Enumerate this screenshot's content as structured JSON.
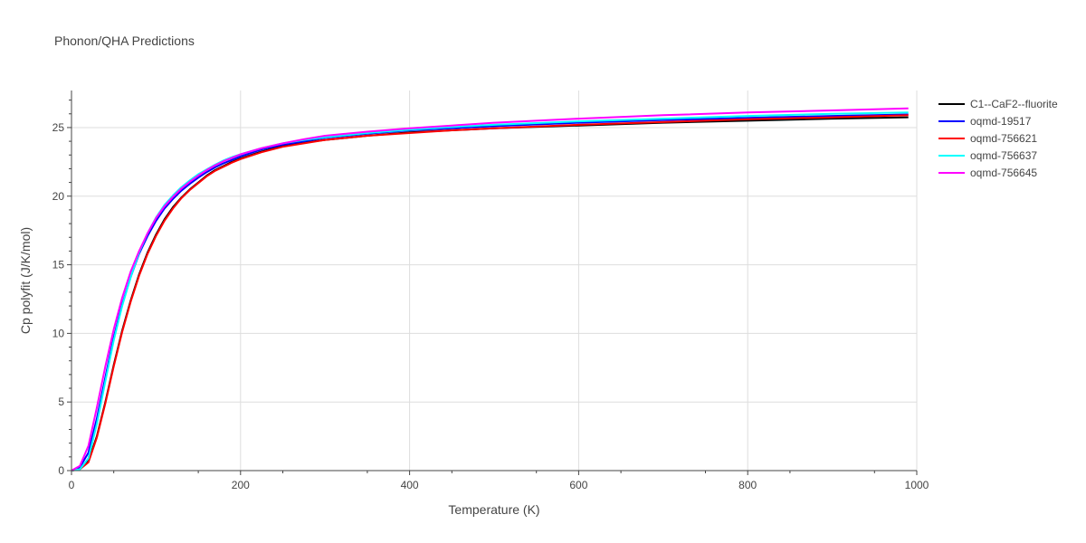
{
  "chart_data": {
    "type": "line",
    "title": "Phonon/QHA Predictions",
    "xlabel": "Temperature (K)",
    "ylabel": "Cp polyfit (J/K/mol)",
    "xlim": [
      0,
      1000
    ],
    "ylim": [
      0,
      27.7
    ],
    "xticks": [
      0,
      200,
      400,
      600,
      800,
      1000
    ],
    "yticks": [
      0,
      5,
      10,
      15,
      20,
      25
    ],
    "grid": true,
    "legend_position": "top-right",
    "x": [
      0,
      10,
      20,
      30,
      40,
      50,
      60,
      70,
      80,
      90,
      100,
      110,
      120,
      130,
      140,
      150,
      160,
      170,
      180,
      190,
      200,
      225,
      250,
      275,
      300,
      350,
      400,
      450,
      500,
      600,
      700,
      800,
      900,
      990
    ],
    "series": [
      {
        "name": "C1--CaF2--fluorite",
        "color": "#000000",
        "values": [
          0,
          0.1,
          0.7,
          2.5,
          5.0,
          7.7,
          10.2,
          12.4,
          14.3,
          15.9,
          17.2,
          18.3,
          19.2,
          19.9,
          20.5,
          21.0,
          21.5,
          21.9,
          22.2,
          22.5,
          22.75,
          23.25,
          23.65,
          23.9,
          24.1,
          24.4,
          24.65,
          24.8,
          24.95,
          25.15,
          25.35,
          25.5,
          25.65,
          25.75
        ]
      },
      {
        "name": "oqmd-19517",
        "color": "#0000ff",
        "values": [
          0,
          0.25,
          1.3,
          3.8,
          6.8,
          9.7,
          12.1,
          14.1,
          15.8,
          17.1,
          18.2,
          19.1,
          19.8,
          20.4,
          20.9,
          21.35,
          21.75,
          22.1,
          22.4,
          22.65,
          22.9,
          23.4,
          23.75,
          24.0,
          24.25,
          24.55,
          24.8,
          24.95,
          25.1,
          25.35,
          25.55,
          25.7,
          25.85,
          25.95
        ]
      },
      {
        "name": "oqmd-756621",
        "color": "#ff0000",
        "values": [
          0,
          0.1,
          0.6,
          2.4,
          4.9,
          7.6,
          10.1,
          12.3,
          14.2,
          15.8,
          17.1,
          18.2,
          19.1,
          19.85,
          20.45,
          20.95,
          21.45,
          21.85,
          22.15,
          22.45,
          22.7,
          23.2,
          23.6,
          23.85,
          24.1,
          24.4,
          24.6,
          24.8,
          24.95,
          25.2,
          25.4,
          25.6,
          25.75,
          25.9
        ]
      },
      {
        "name": "oqmd-756637",
        "color": "#00ffff",
        "values": [
          0,
          0.1,
          0.9,
          3.4,
          6.5,
          9.5,
          12.0,
          14.1,
          15.9,
          17.3,
          18.45,
          19.35,
          20.05,
          20.65,
          21.15,
          21.6,
          21.95,
          22.3,
          22.6,
          22.85,
          23.05,
          23.5,
          23.85,
          24.1,
          24.3,
          24.6,
          24.85,
          25.05,
          25.2,
          25.45,
          25.65,
          25.85,
          26.0,
          26.1
        ]
      },
      {
        "name": "oqmd-756645",
        "color": "#ff00ff",
        "values": [
          0,
          0.35,
          1.8,
          4.6,
          7.6,
          10.3,
          12.6,
          14.5,
          16.0,
          17.3,
          18.4,
          19.25,
          19.95,
          20.55,
          21.05,
          21.5,
          21.9,
          22.25,
          22.55,
          22.8,
          23.05,
          23.5,
          23.85,
          24.15,
          24.4,
          24.7,
          24.95,
          25.15,
          25.35,
          25.65,
          25.9,
          26.1,
          26.25,
          26.4
        ]
      }
    ]
  }
}
